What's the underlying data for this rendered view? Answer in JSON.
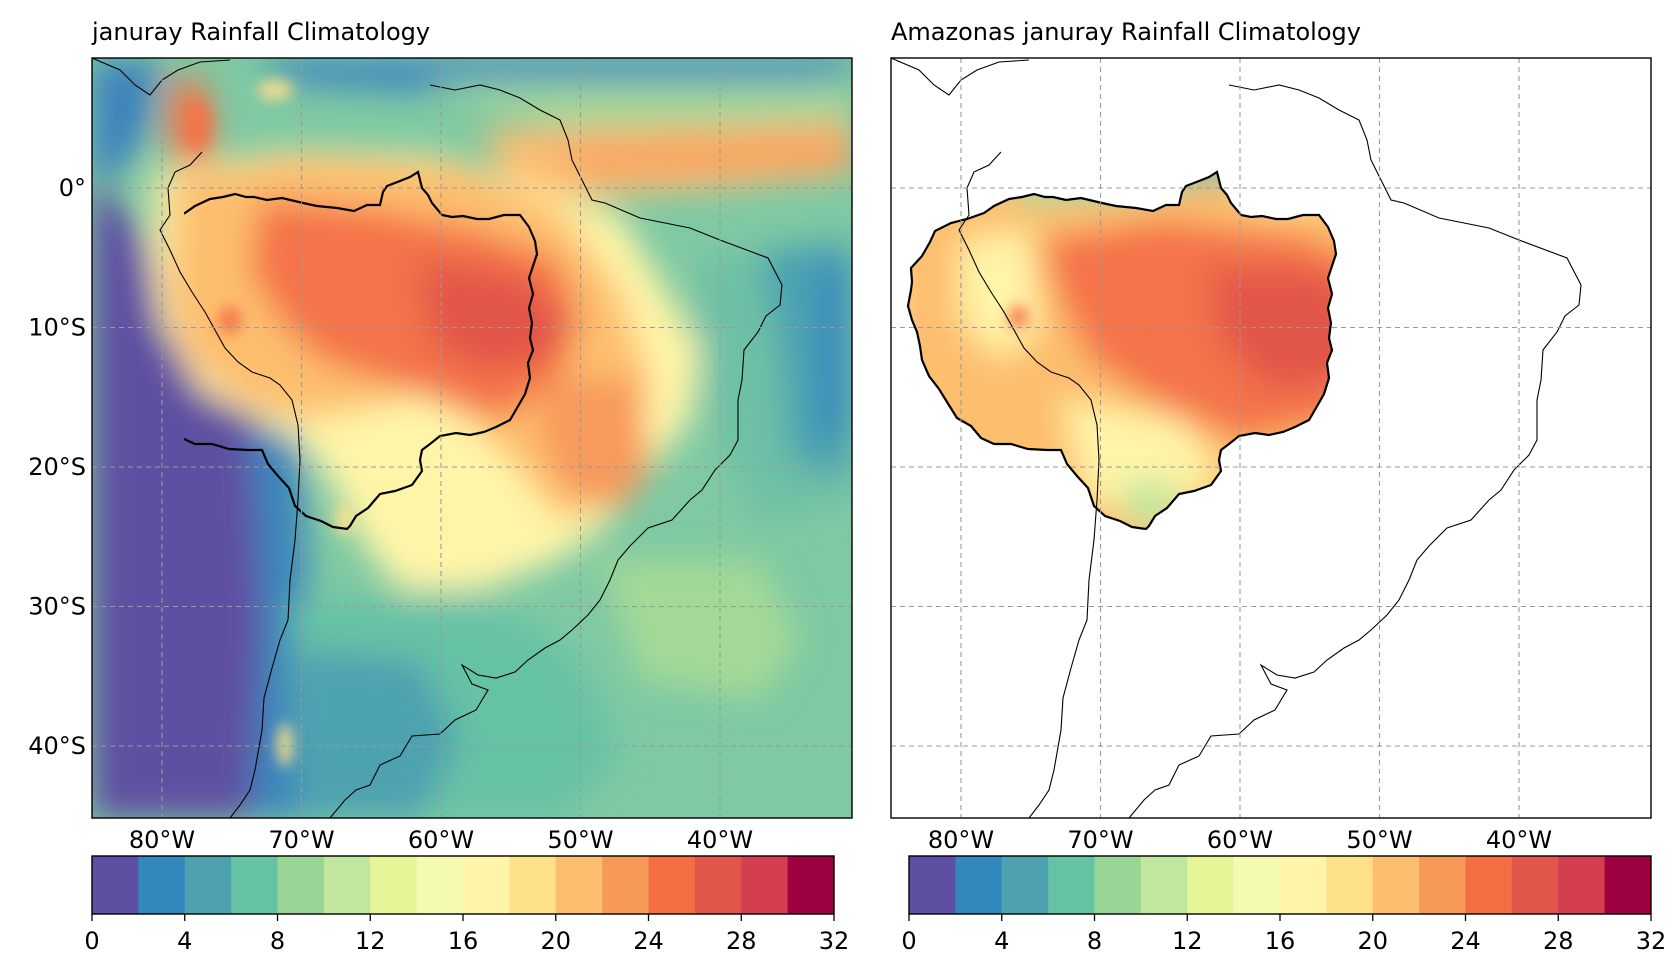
{
  "figure": {
    "panels": [
      {
        "id": "full",
        "title": "januray Rainfall Climatology",
        "masked": false,
        "x_ticks": [
          {
            "value": -80,
            "label": "80°W"
          },
          {
            "value": -70,
            "label": "70°W"
          },
          {
            "value": -60,
            "label": "60°W"
          },
          {
            "value": -50,
            "label": "50°W"
          },
          {
            "value": -40,
            "label": "40°W"
          }
        ],
        "y_ticks": [
          {
            "value": 0,
            "label": "0°"
          },
          {
            "value": -10,
            "label": "10°S"
          },
          {
            "value": -20,
            "label": "20°S"
          },
          {
            "value": -30,
            "label": "30°S"
          },
          {
            "value": -40,
            "label": "40°S"
          }
        ]
      },
      {
        "id": "amazonas",
        "title": "Amazonas januray Rainfall Climatology",
        "masked": true,
        "x_ticks": [
          {
            "value": -80,
            "label": "80°W"
          },
          {
            "value": -70,
            "label": "70°W"
          },
          {
            "value": -60,
            "label": "60°W"
          },
          {
            "value": -50,
            "label": "50°W"
          },
          {
            "value": -40,
            "label": "40°W"
          }
        ],
        "y_ticks": []
      }
    ],
    "colorbar": {
      "range": [
        0,
        32
      ],
      "levels": [
        0,
        2,
        4,
        6,
        8,
        10,
        12,
        14,
        16,
        18,
        20,
        22,
        24,
        26,
        28,
        30,
        32
      ],
      "tick_labels": [
        "0",
        "4",
        "8",
        "12",
        "16",
        "20",
        "24",
        "28",
        "32"
      ],
      "colors": [
        "#5e4fa2",
        "#3288bd",
        "#4ea2b0",
        "#66c2a5",
        "#99d594",
        "#c1e79e",
        "#e6f598",
        "#f4fab0",
        "#fff4a8",
        "#fee08b",
        "#fdbf6f",
        "#f89a57",
        "#f46d43",
        "#e25549",
        "#d53e4f",
        "#9e0142"
      ]
    }
  }
}
